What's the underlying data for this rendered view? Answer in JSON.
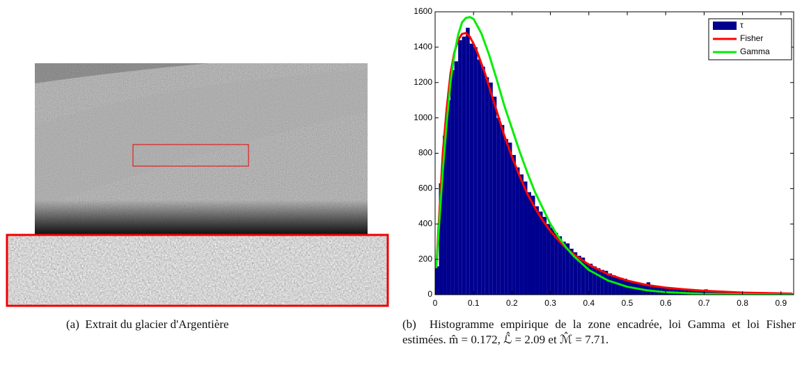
{
  "panel_a": {
    "label": "(a)",
    "caption": "Extrait du glacier d'Argentière"
  },
  "panel_b": {
    "label": "(b)",
    "caption": "Histogramme empirique de la zone encadrée, loi Gamma et loi Fisher estimées. m̂ = 0.172, ℒ̂ = 2.09 et ℳ̂ = 7.71."
  },
  "chart_data": {
    "type": "histogram",
    "xlim": [
      0,
      0.933
    ],
    "ylim": [
      0,
      1600
    ],
    "xticks": [
      0,
      0.1,
      0.2,
      0.3,
      0.4,
      0.5,
      0.6,
      0.7,
      0.8,
      0.9
    ],
    "yticks": [
      0,
      200,
      400,
      600,
      800,
      1000,
      1200,
      1400,
      1600
    ],
    "legend": "upper right",
    "series": [
      {
        "name": "τ",
        "type": "histogram",
        "color": "#00008f",
        "bins": [
          0,
          0.01,
          0.02,
          0.03,
          0.04,
          0.05,
          0.06,
          0.07,
          0.08,
          0.09,
          0.1,
          0.11,
          0.12,
          0.13,
          0.14,
          0.15,
          0.16,
          0.17,
          0.18,
          0.19,
          0.2,
          0.21,
          0.22,
          0.23,
          0.24,
          0.25,
          0.26,
          0.27,
          0.28,
          0.29,
          0.3,
          0.31,
          0.32,
          0.33,
          0.34,
          0.35,
          0.36,
          0.37,
          0.38,
          0.39,
          0.4,
          0.41,
          0.42,
          0.43,
          0.44,
          0.45,
          0.46,
          0.47,
          0.48,
          0.49,
          0.5,
          0.51,
          0.52,
          0.53,
          0.54,
          0.55,
          0.56,
          0.57,
          0.58,
          0.59,
          0.6,
          0.61,
          0.62,
          0.63,
          0.64,
          0.65,
          0.66,
          0.67,
          0.68,
          0.69,
          0.7,
          0.71,
          0.72,
          0.73,
          0.74,
          0.75,
          0.76,
          0.77,
          0.78,
          0.79,
          0.8,
          0.81,
          0.82,
          0.83,
          0.84,
          0.85,
          0.86,
          0.87,
          0.88,
          0.89,
          0.9,
          0.91,
          0.92,
          0.93,
          0.94
        ],
        "values": [
          160,
          630,
          900,
          1100,
          1270,
          1320,
          1440,
          1460,
          1510,
          1420,
          1400,
          1330,
          1290,
          1230,
          1200,
          1120,
          1000,
          960,
          880,
          860,
          790,
          720,
          680,
          640,
          580,
          560,
          500,
          470,
          440,
          400,
          380,
          350,
          330,
          300,
          290,
          260,
          240,
          220,
          210,
          180,
          175,
          160,
          150,
          140,
          135,
          120,
          110,
          100,
          95,
          90,
          80,
          75,
          70,
          65,
          60,
          70,
          52,
          48,
          45,
          42,
          40,
          37,
          34,
          32,
          30,
          28,
          26,
          24,
          23,
          22,
          30,
          20,
          18,
          17,
          16,
          15,
          14,
          13,
          12,
          12,
          11,
          10,
          10,
          9,
          9,
          8,
          8,
          7,
          7,
          6,
          6,
          6,
          5,
          5
        ]
      },
      {
        "name": "Fisher",
        "type": "line",
        "color": "#ff0000",
        "x": [
          0.003,
          0.01,
          0.02,
          0.03,
          0.04,
          0.05,
          0.06,
          0.07,
          0.08,
          0.09,
          0.1,
          0.11,
          0.12,
          0.13,
          0.14,
          0.15,
          0.16,
          0.17,
          0.18,
          0.19,
          0.2,
          0.22,
          0.24,
          0.26,
          0.28,
          0.3,
          0.32,
          0.34,
          0.36,
          0.38,
          0.4,
          0.45,
          0.5,
          0.55,
          0.6,
          0.65,
          0.7,
          0.8,
          0.93
        ],
        "values": [
          150,
          420,
          800,
          1050,
          1250,
          1370,
          1440,
          1475,
          1480,
          1460,
          1420,
          1370,
          1310,
          1250,
          1180,
          1110,
          1040,
          970,
          900,
          840,
          780,
          670,
          570,
          490,
          420,
          360,
          310,
          265,
          230,
          200,
          170,
          115,
          80,
          55,
          40,
          30,
          22,
          12,
          6
        ]
      },
      {
        "name": "Gamma",
        "type": "line",
        "color": "#00ee00",
        "x": [
          0.003,
          0.01,
          0.02,
          0.03,
          0.04,
          0.05,
          0.06,
          0.07,
          0.08,
          0.09,
          0.1,
          0.12,
          0.14,
          0.16,
          0.18,
          0.2,
          0.22,
          0.24,
          0.26,
          0.28,
          0.3,
          0.32,
          0.34,
          0.36,
          0.4,
          0.45,
          0.5,
          0.55,
          0.6,
          0.7,
          0.8,
          0.93
        ],
        "values": [
          150,
          380,
          700,
          970,
          1200,
          1360,
          1470,
          1540,
          1565,
          1570,
          1560,
          1480,
          1360,
          1220,
          1070,
          940,
          810,
          690,
          580,
          490,
          400,
          330,
          270,
          220,
          140,
          80,
          45,
          25,
          14,
          5,
          2,
          0.5
        ]
      }
    ]
  }
}
